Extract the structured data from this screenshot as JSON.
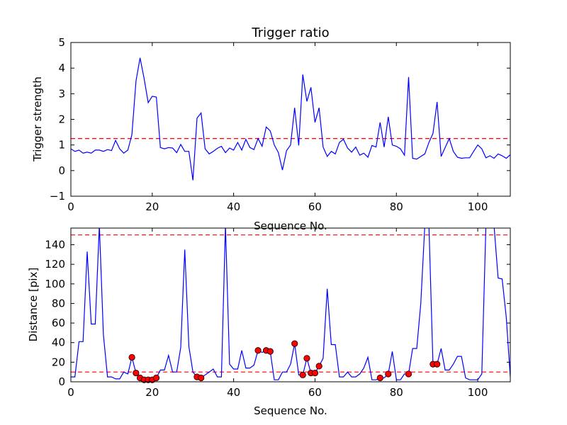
{
  "chart_data": [
    {
      "type": "line",
      "title": "Trigger ratio",
      "xlabel": "Sequence No.",
      "ylabel": "Trigger strength",
      "xlim": [
        0,
        108
      ],
      "ylim": [
        -1,
        5
      ],
      "xticks": [
        0,
        20,
        40,
        60,
        80,
        100
      ],
      "yticks": [
        -1,
        0,
        1,
        2,
        3,
        4,
        5
      ],
      "grid": false,
      "series": [
        {
          "color": "#0000ff",
          "x": [
            0,
            1,
            2,
            3,
            4,
            5,
            6,
            7,
            8,
            9,
            10,
            11,
            12,
            13,
            14,
            15,
            16,
            17,
            18,
            19,
            20,
            21,
            22,
            23,
            24,
            25,
            26,
            27,
            28,
            29,
            30,
            31,
            32,
            33,
            34,
            35,
            36,
            37,
            38,
            39,
            40,
            41,
            42,
            43,
            44,
            45,
            46,
            47,
            48,
            49,
            50,
            51,
            52,
            53,
            54,
            55,
            56,
            57,
            58,
            59,
            60,
            61,
            62,
            63,
            64,
            65,
            66,
            67,
            68,
            69,
            70,
            71,
            72,
            73,
            74,
            75,
            76,
            77,
            78,
            79,
            80,
            81,
            82,
            83,
            84,
            85,
            86,
            87,
            88,
            89,
            90,
            91,
            92,
            93,
            94,
            95,
            96,
            97,
            98,
            99,
            100,
            101,
            102,
            103,
            104,
            105,
            106,
            107,
            108
          ],
          "y": [
            0.85,
            0.75,
            0.8,
            0.68,
            0.72,
            0.68,
            0.8,
            0.8,
            0.75,
            0.82,
            0.78,
            1.18,
            0.85,
            0.68,
            0.8,
            1.4,
            3.5,
            4.4,
            3.6,
            2.65,
            2.9,
            2.87,
            0.9,
            0.85,
            0.9,
            0.88,
            0.7,
            1.02,
            0.75,
            0.75,
            -0.38,
            2.05,
            2.25,
            0.85,
            0.65,
            0.75,
            0.87,
            0.95,
            0.7,
            0.88,
            0.8,
            1.1,
            0.8,
            1.22,
            0.9,
            0.82,
            1.25,
            0.95,
            1.7,
            1.55,
            1.0,
            0.7,
            0.02,
            0.78,
            1.0,
            2.45,
            0.98,
            3.75,
            2.7,
            3.25,
            1.88,
            2.45,
            0.92,
            0.55,
            0.75,
            0.65,
            1.1,
            1.22,
            0.88,
            0.72,
            0.92,
            0.6,
            0.68,
            0.52,
            0.98,
            0.92,
            1.88,
            0.92,
            2.1,
            1.0,
            0.95,
            0.85,
            0.6,
            3.65,
            0.48,
            0.45,
            0.55,
            0.65,
            1.1,
            1.45,
            2.68,
            0.55,
            0.9,
            1.25,
            0.75,
            0.52,
            0.48,
            0.5,
            0.5,
            0.75,
            1.0,
            0.85,
            0.5,
            0.58,
            0.48,
            0.65,
            0.58,
            0.48,
            0.62
          ]
        }
      ],
      "hlines": [
        {
          "y": 1.25,
          "color": "#ff0000",
          "style": "dashed"
        }
      ]
    },
    {
      "type": "line",
      "xlabel": "Sequence No.",
      "ylabel": "Distance [pix]",
      "xlim": [
        0,
        108
      ],
      "ylim": [
        0,
        157
      ],
      "xticks": [
        0,
        20,
        40,
        60,
        80,
        100
      ],
      "yticks": [
        0,
        20,
        40,
        60,
        80,
        100,
        120,
        140
      ],
      "grid": false,
      "series": [
        {
          "color": "#0000ff",
          "x": [
            0,
            1,
            2,
            3,
            4,
            5,
            6,
            7,
            8,
            9,
            10,
            11,
            12,
            13,
            14,
            15,
            16,
            17,
            18,
            19,
            20,
            21,
            22,
            23,
            24,
            25,
            26,
            27,
            28,
            29,
            30,
            31,
            32,
            33,
            34,
            35,
            36,
            37,
            38,
            39,
            40,
            41,
            42,
            43,
            44,
            45,
            46,
            47,
            48,
            49,
            50,
            51,
            52,
            53,
            54,
            55,
            56,
            57,
            58,
            59,
            60,
            61,
            62,
            63,
            64,
            65,
            66,
            67,
            68,
            69,
            70,
            71,
            72,
            73,
            74,
            75,
            76,
            77,
            78,
            79,
            80,
            81,
            82,
            83,
            84,
            85,
            86,
            87,
            88,
            89,
            90,
            91,
            92,
            93,
            94,
            95,
            96,
            97,
            98,
            99,
            100,
            101,
            102,
            103,
            104,
            105,
            106,
            107,
            108
          ],
          "y": [
            5,
            5,
            41,
            41,
            133,
            59,
            59,
            160,
            48,
            5,
            5,
            3,
            3,
            10,
            8,
            25,
            9,
            4,
            2,
            2,
            2,
            4,
            12,
            12,
            27,
            10,
            10,
            35,
            135,
            36,
            10,
            5,
            4,
            7,
            10,
            13,
            5,
            5,
            160,
            18,
            13,
            13,
            32,
            14,
            14,
            17,
            32,
            30,
            32,
            31,
            2,
            2,
            10,
            10,
            18,
            39,
            7,
            7,
            24,
            9,
            9,
            16,
            24,
            95,
            38,
            38,
            5,
            5,
            10,
            5,
            5,
            8,
            14,
            25,
            2,
            2,
            4,
            4,
            8,
            31,
            2,
            2,
            8,
            8,
            34,
            34,
            80,
            160,
            160,
            18,
            18,
            34,
            12,
            12,
            18,
            26,
            26,
            4,
            2,
            2,
            2,
            8,
            160,
            160,
            160,
            106,
            105,
            66,
            5
          ]
        }
      ],
      "markers": {
        "color": "#ff0000",
        "x": [
          15,
          16,
          17,
          18,
          19,
          20,
          21,
          31,
          32,
          46,
          48,
          49,
          55,
          57,
          58,
          59,
          60,
          61,
          76,
          78,
          83,
          89,
          90
        ],
        "y": [
          25,
          9,
          4,
          2,
          2,
          2,
          4,
          5,
          4,
          32,
          32,
          31,
          39,
          7,
          24,
          9,
          9,
          16,
          4,
          8,
          8,
          18,
          18
        ]
      },
      "hlines": [
        {
          "y": 150,
          "color": "#ff0000",
          "style": "dashed"
        },
        {
          "y": 10,
          "color": "#ff0000",
          "style": "dashed"
        }
      ]
    }
  ]
}
